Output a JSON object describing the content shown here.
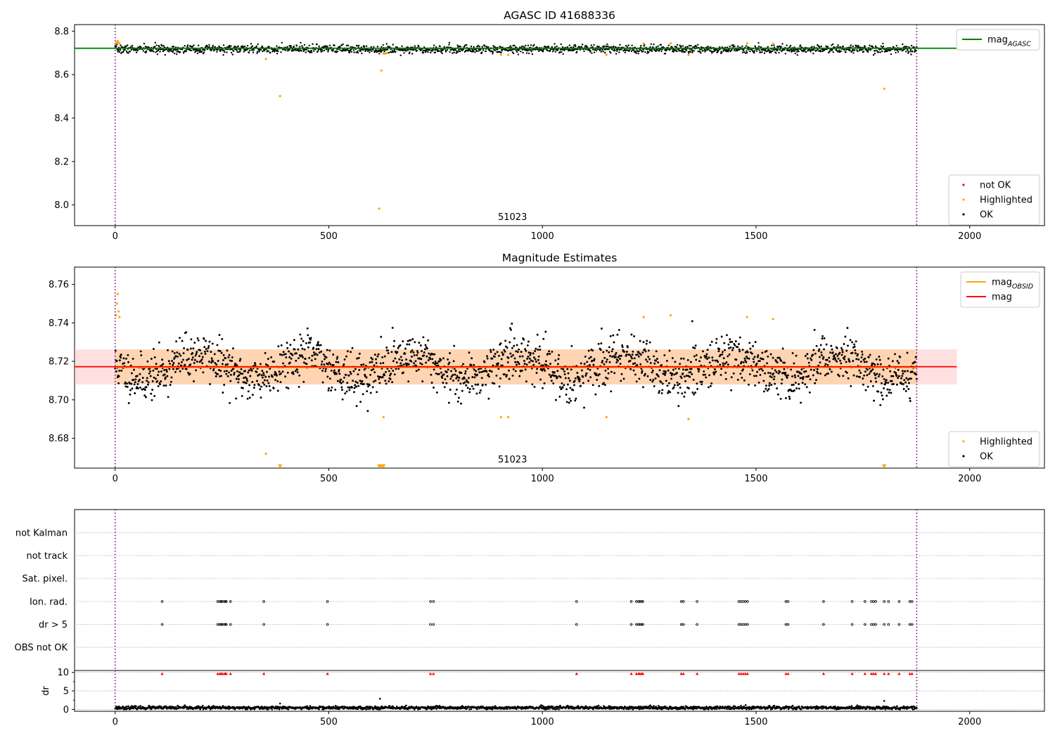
{
  "chart_data": [
    {
      "id": "agasc",
      "type": "scatter",
      "title": "AGASC ID 41688336",
      "xlim": [
        -95,
        2175
      ],
      "ylim": [
        7.905,
        8.83
      ],
      "xticks": [
        0,
        500,
        1000,
        1500,
        2000
      ],
      "yticks": [
        8.0,
        8.2,
        8.4,
        8.6,
        8.8
      ],
      "ytick_decimals": 1,
      "vlines": [
        0,
        1876
      ],
      "vline_color": "#800080",
      "obsid_label": "51023",
      "obsid_label_x": 930,
      "hline": {
        "name": "mag_AGASC",
        "value": 8.721,
        "color": "#008000"
      },
      "legend_upper": [
        {
          "label": "mag",
          "sub": "AGASC",
          "color": "#008000",
          "kind": "line"
        }
      ],
      "legend_lower": [
        {
          "label": "not OK",
          "color": "#ff0000",
          "kind": "point"
        },
        {
          "label": "Highlighted",
          "color": "#ffa500",
          "kind": "point"
        },
        {
          "label": "OK",
          "color": "#000000",
          "kind": "point"
        }
      ],
      "series": [
        {
          "name": "OK",
          "color": "#000000",
          "x_range": [
            0,
            1876
          ],
          "count": 1876,
          "center": 8.7172,
          "noise": 0.006,
          "wave_amp": 0.006,
          "wave_period": 250,
          "wave_phase": 120
        },
        {
          "name": "Highlighted",
          "color": "#ffa500",
          "points": [
            [
              2,
              8.744
            ],
            [
              4,
              8.75
            ],
            [
              6,
              8.755
            ],
            [
              8,
              8.746
            ],
            [
              10,
              8.743
            ],
            [
              353,
              8.672
            ],
            [
              386,
              8.501
            ],
            [
              618,
              7.983
            ],
            [
              623,
              8.619
            ],
            [
              628,
              8.697
            ],
            [
              632,
              8.696
            ],
            [
              636,
              8.699
            ],
            [
              903,
              8.691
            ],
            [
              920,
              8.691
            ],
            [
              1150,
              8.691
            ],
            [
              1237,
              8.743
            ],
            [
              1300,
              8.744
            ],
            [
              1342,
              8.69
            ],
            [
              1479,
              8.743
            ],
            [
              1540,
              8.742
            ],
            [
              1800,
              8.535
            ]
          ]
        }
      ]
    },
    {
      "id": "estimates",
      "type": "scatter",
      "title": "Magnitude Estimates",
      "xlim": [
        -95,
        2175
      ],
      "ylim": [
        8.6645,
        8.769
      ],
      "xticks": [
        0,
        500,
        1000,
        1500,
        2000
      ],
      "yticks": [
        8.68,
        8.7,
        8.72,
        8.74,
        8.76
      ],
      "ytick_decimals": 2,
      "vlines": [
        0,
        1876
      ],
      "vline_color": "#800080",
      "obsid_label": "51023",
      "obsid_label_x": 930,
      "band": {
        "x_range": [
          -95,
          1970
        ],
        "lower": 8.708,
        "upper": 8.7262,
        "fill_color": "#ff9999",
        "fill_opacity": 0.3
      },
      "obs_band": {
        "x_range": [
          0,
          1876
        ],
        "lower": 8.708,
        "upper": 8.7262,
        "fill_color": "#ffa500",
        "fill_opacity": 0.2
      },
      "mag_line": {
        "name": "mag",
        "x_range": [
          -95,
          1970
        ],
        "value": 8.7172,
        "color": "#ff0000"
      },
      "mag_obsid_line": {
        "name": "mag_OBSID",
        "x_range": [
          0,
          1876
        ],
        "value": 8.7168,
        "color": "#ffa500"
      },
      "legend_upper": [
        {
          "label": "mag",
          "sub": "OBSID",
          "color": "#ffa500",
          "kind": "line"
        },
        {
          "label": "mag",
          "sub": "",
          "color": "#ff0000",
          "kind": "line"
        }
      ],
      "legend_lower": [
        {
          "label": "Highlighted",
          "color": "#ffa500",
          "kind": "point"
        },
        {
          "label": "OK",
          "color": "#000000",
          "kind": "point"
        }
      ],
      "series": [
        {
          "name": "OK",
          "color": "#000000",
          "x_range": [
            0,
            1876
          ],
          "count": 1876,
          "center": 8.7172,
          "noise": 0.006,
          "wave_amp": 0.006,
          "wave_period": 250,
          "wave_phase": 120
        },
        {
          "name": "Highlighted",
          "color": "#ffa500",
          "points": [
            [
              2,
              8.744
            ],
            [
              4,
              8.75
            ],
            [
              6,
              8.755
            ],
            [
              8,
              8.746
            ],
            [
              10,
              8.743
            ],
            [
              353,
              8.672
            ],
            [
              628,
              8.691
            ],
            [
              903,
              8.691
            ],
            [
              920,
              8.691
            ],
            [
              1150,
              8.691
            ],
            [
              1237,
              8.743
            ],
            [
              1300,
              8.744
            ],
            [
              1342,
              8.69
            ],
            [
              1479,
              8.743
            ],
            [
              1540,
              8.742
            ]
          ]
        },
        {
          "name": "Highlighted (off-scale)",
          "color": "#ffa500",
          "marker": "triangle-down",
          "points": [
            [
              386,
              8.666
            ],
            [
              618,
              8.666
            ],
            [
              623,
              8.666
            ],
            [
              628,
              8.666
            ],
            [
              1800,
              8.666
            ]
          ]
        }
      ]
    },
    {
      "id": "flags",
      "type": "scatter",
      "xlim": [
        -95,
        2175
      ],
      "vlines": [
        0,
        1876
      ],
      "vline_color": "#800080",
      "rows": [
        "not Kalman",
        "not track",
        "Sat. pixel.",
        "Ion. rad.",
        "dr > 5",
        "OBS not OK"
      ],
      "flag_rows": [
        "Ion. rad.",
        "dr > 5"
      ],
      "flag_x": [
        110,
        240,
        245,
        248,
        250,
        255,
        258,
        260,
        270,
        348,
        497,
        738,
        745,
        1080,
        1208,
        1220,
        1225,
        1228,
        1232,
        1235,
        1325,
        1330,
        1362,
        1460,
        1465,
        1470,
        1475,
        1480,
        1570,
        1575,
        1658,
        1725,
        1755,
        1770,
        1775,
        1780,
        1800,
        1810,
        1835,
        1860,
        1865
      ]
    },
    {
      "id": "dr",
      "type": "scatter",
      "ylabel": "dr",
      "xlim": [
        -95,
        2175
      ],
      "ylim": [
        -0.5,
        10.5
      ],
      "xticks": [
        0,
        500,
        1000,
        1500,
        2000
      ],
      "yticks": [
        0,
        5,
        10
      ],
      "ytick_decimals": 0,
      "vlines": [
        0,
        1876
      ],
      "vline_color": "#800080",
      "series": [
        {
          "name": "dr",
          "color": "#000000",
          "x_range": [
            0,
            1876
          ],
          "count": 1876,
          "center": 0.45,
          "noise": 0.22
        },
        {
          "name": "dr outliers",
          "color": "#000000",
          "points": [
            [
              386,
              1.6
            ],
            [
              620,
              2.9
            ],
            [
              1800,
              2.3
            ]
          ]
        },
        {
          "name": "dr > 5",
          "color": "#ff0000",
          "marker": "triangle-up",
          "value": 9.6,
          "source": "flags.flag_x"
        }
      ]
    }
  ]
}
